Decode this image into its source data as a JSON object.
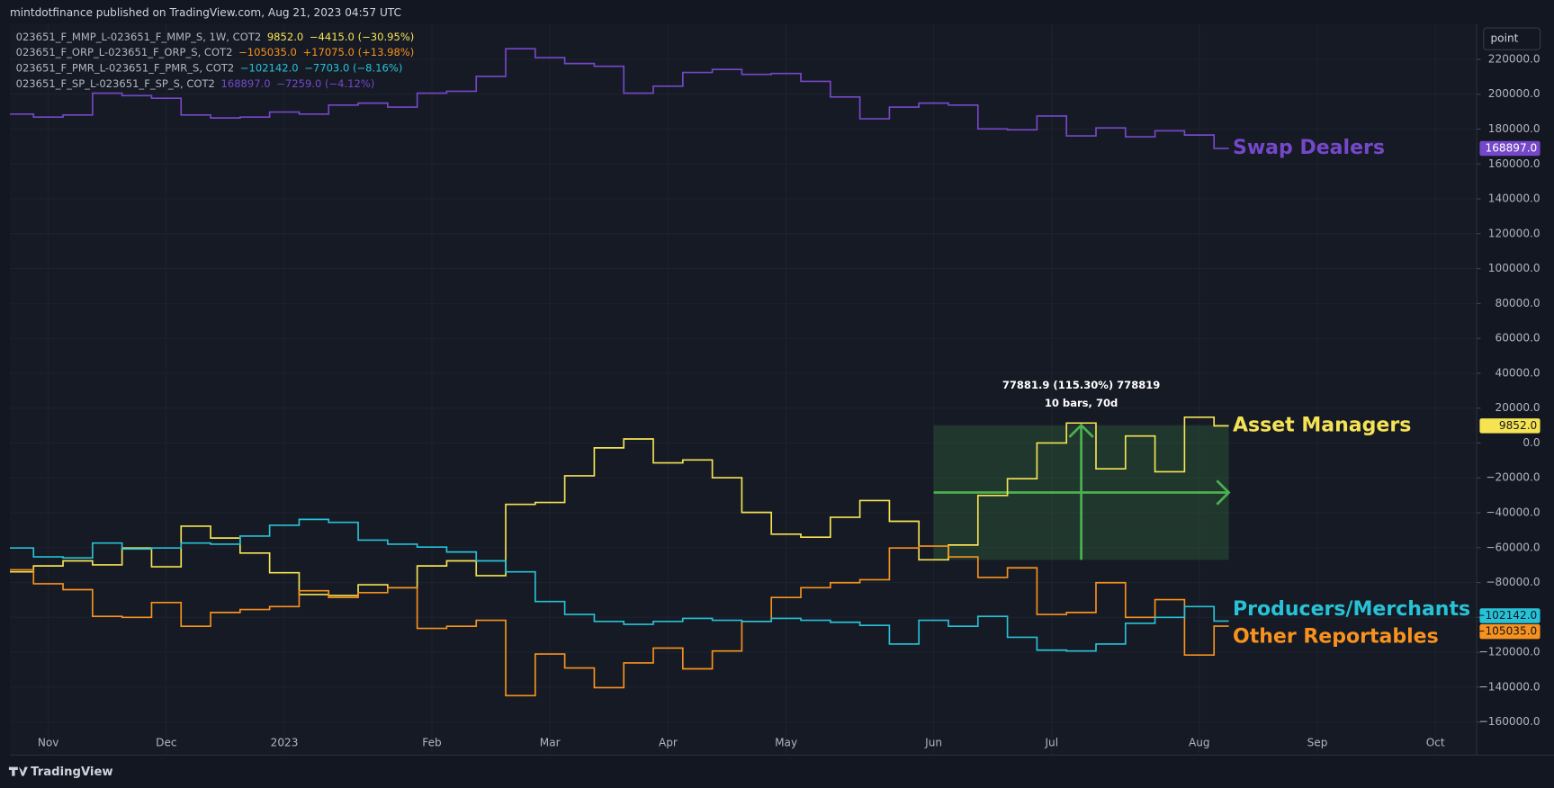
{
  "header": {
    "publisher": "mintdotfinance published on TradingView.com, Aug 21, 2023 04:57 UTC",
    "scale_button": "point",
    "logo": "TradingView"
  },
  "chart_data": {
    "type": "step",
    "xlim": [
      0.2,
      49.9
    ],
    "ylim": [
      -179000,
      240300
    ],
    "xticks": [
      {
        "value": 1.5,
        "label": "Nov"
      },
      {
        "value": 5.5,
        "label": "Dec"
      },
      {
        "value": 9.5,
        "label": "2023"
      },
      {
        "value": 14.5,
        "label": "Feb"
      },
      {
        "value": 18.5,
        "label": "Mar"
      },
      {
        "value": 22.5,
        "label": "Apr"
      },
      {
        "value": 26.5,
        "label": "May"
      },
      {
        "value": 31.5,
        "label": "Jun"
      },
      {
        "value": 35.5,
        "label": "Jul"
      },
      {
        "value": 40.5,
        "label": "Aug"
      },
      {
        "value": 44.5,
        "label": "Sep"
      },
      {
        "value": 48.5,
        "label": "Oct"
      }
    ],
    "yticks": [
      {
        "value": 220000,
        "label": "220000.0"
      },
      {
        "value": 200000,
        "label": "200000.0"
      },
      {
        "value": 180000,
        "label": "180000.0"
      },
      {
        "value": 160000,
        "label": "160000.0"
      },
      {
        "value": 140000,
        "label": "140000.0"
      },
      {
        "value": 120000,
        "label": "120000.0"
      },
      {
        "value": 100000,
        "label": "100000.0"
      },
      {
        "value": 80000,
        "label": "80000.0"
      },
      {
        "value": 60000,
        "label": "60000.0"
      },
      {
        "value": 40000,
        "label": "40000.0"
      },
      {
        "value": 20000,
        "label": "20000.0"
      },
      {
        "value": 0,
        "label": "0.0"
      },
      {
        "value": -20000,
        "label": "−20000.0"
      },
      {
        "value": -40000,
        "label": "−40000.0"
      },
      {
        "value": -60000,
        "label": "−60000.0"
      },
      {
        "value": -80000,
        "label": "−80000.0"
      },
      {
        "value": -100000,
        "label": "−100000.0"
      },
      {
        "value": -120000,
        "label": "−120000.0"
      },
      {
        "value": -140000,
        "label": "−140000.0"
      },
      {
        "value": -160000,
        "label": "−160000.0"
      }
    ],
    "grid": true,
    "x": [
      0,
      1,
      2,
      3,
      4,
      5,
      6,
      7,
      8,
      9,
      10,
      11,
      12,
      13,
      14,
      15,
      16,
      17,
      18,
      19,
      20,
      21,
      22,
      23,
      24,
      25,
      26,
      27,
      28,
      29,
      30,
      31,
      32,
      33,
      34,
      35,
      36,
      37,
      38,
      39,
      40,
      41
    ],
    "series": [
      {
        "name": "Asset Managers",
        "color": "#f5e353",
        "tag_text": "#131722",
        "legend": {
          "symbol": "023651_F_MMP_L-023651_F_MMP_S, 1W, COT2",
          "value": "9852.0",
          "change": "−4415.0 (−30.95%)"
        },
        "last_label": "9852.0",
        "values": [
          -73900,
          -70500,
          -67600,
          -69900,
          -60200,
          -71000,
          -47700,
          -54500,
          -63100,
          -74400,
          -86900,
          -87500,
          -81300,
          -83000,
          -70500,
          -67600,
          -76100,
          -35200,
          -34100,
          -18800,
          -2800,
          2300,
          -11400,
          -9700,
          -19900,
          -39800,
          -52300,
          -54000,
          -42600,
          -33000,
          -44900,
          -67000,
          -58500,
          -30100,
          -20500,
          0,
          11400,
          -14800,
          4000,
          -16500,
          14800,
          9852
        ]
      },
      {
        "name": "Other Reportables",
        "color": "#f7921e",
        "tag_text": "#131722",
        "legend": {
          "symbol": "023651_F_ORP_L-023651_F_ORP_S, COT2",
          "value": "−105035.0",
          "change": "+17075.0 (+13.98%)"
        },
        "last_label": "−105035.0",
        "values": [
          -72700,
          -80700,
          -84100,
          -99400,
          -100000,
          -91500,
          -105100,
          -97200,
          -95500,
          -93800,
          -84700,
          -88600,
          -85800,
          -83000,
          -106300,
          -105100,
          -101700,
          -144900,
          -121000,
          -129000,
          -140300,
          -126100,
          -117600,
          -129500,
          -119300,
          -102300,
          -88600,
          -83000,
          -80100,
          -78400,
          -60200,
          -59100,
          -65300,
          -77100,
          -71600,
          -98300,
          -97200,
          -80100,
          -100000,
          -89800,
          -121600,
          -105035
        ]
      },
      {
        "name": "Producers/Merchants",
        "color": "#27c2d6",
        "tag_text": "#131722",
        "legend": {
          "symbol": "023651_F_PMR_L-023651_F_PMR_S, COT2",
          "value": "−102142.0",
          "change": "−7703.0 (−8.16%)"
        },
        "last_label": "−102142.0",
        "values": [
          -60200,
          -65300,
          -65900,
          -57400,
          -60800,
          -60200,
          -57400,
          -58000,
          -53400,
          -47200,
          -43800,
          -45500,
          -55700,
          -58000,
          -59700,
          -62500,
          -67600,
          -73900,
          -90900,
          -98300,
          -102300,
          -104000,
          -102300,
          -100600,
          -101700,
          -102300,
          -100600,
          -101700,
          -102800,
          -104600,
          -115300,
          -101700,
          -105100,
          -99400,
          -111400,
          -118800,
          -119300,
          -115300,
          -103400,
          -100000,
          -93800,
          -102142
        ]
      },
      {
        "name": "Swap Dealers",
        "color": "#7548c9",
        "tag_text": "#ffffff",
        "legend": {
          "symbol": "023651_F_SP_L-023651_F_SP_S, COT2",
          "value": "168897.0",
          "change": "−7259.0 (−4.12%)"
        },
        "last_label": "168897.0",
        "values": [
          188600,
          186900,
          188100,
          200600,
          199200,
          197700,
          188100,
          186400,
          186900,
          189800,
          188600,
          193800,
          194900,
          192600,
          200600,
          201700,
          210200,
          226100,
          221000,
          217600,
          216000,
          200600,
          204600,
          212500,
          214200,
          211400,
          211900,
          207400,
          198400,
          185900,
          192600,
          194900,
          193800,
          180100,
          179600,
          187500,
          176100,
          180700,
          175600,
          179000,
          176600,
          168897
        ]
      }
    ],
    "measure": {
      "line1": "77881.9 (115.30%) 778819",
      "line2": "10 bars, 70d",
      "x": [
        31.5,
        41.5
      ],
      "y": [
        -67000,
        10200
      ]
    }
  }
}
